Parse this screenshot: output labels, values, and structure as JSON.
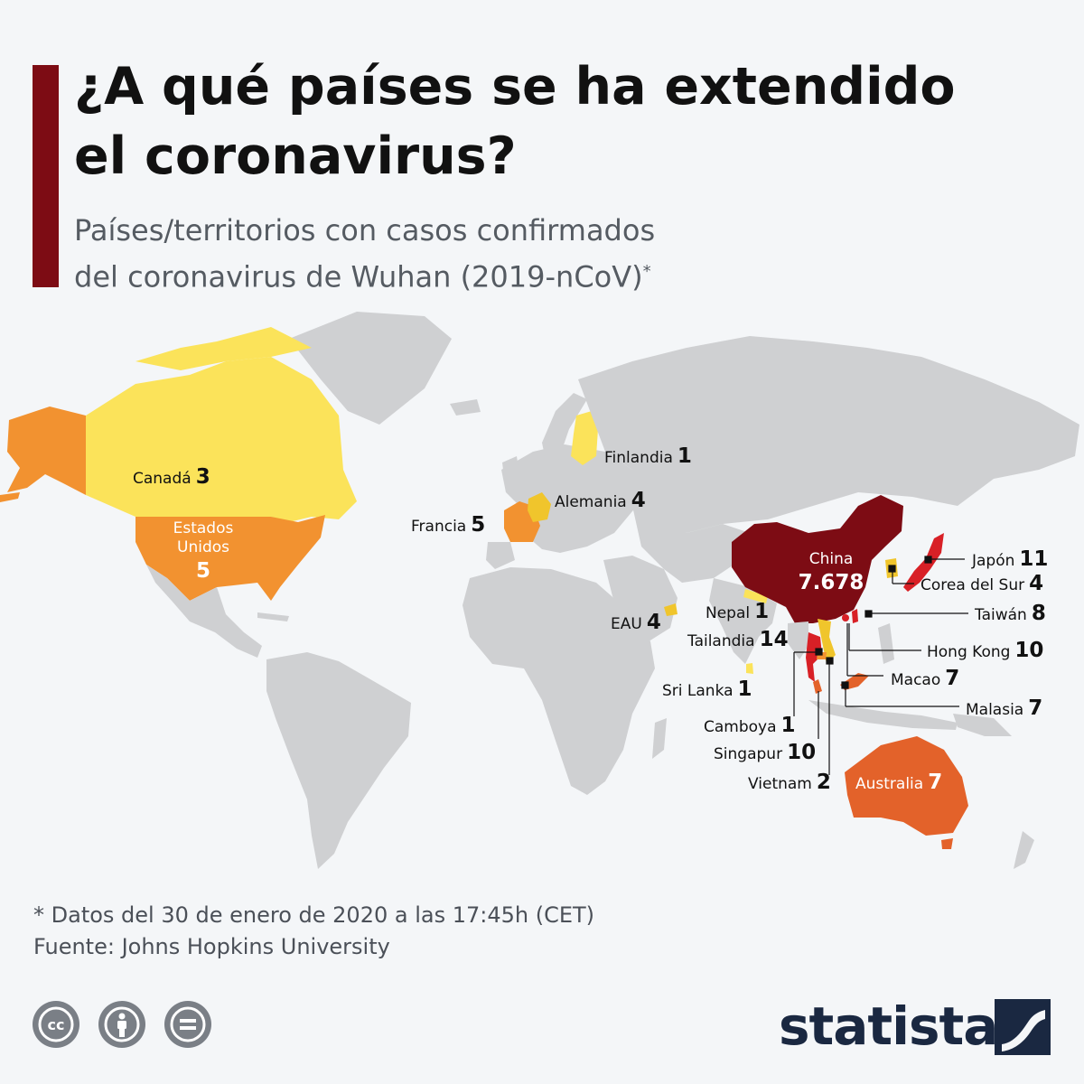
{
  "header": {
    "title_line1": "¿A qué países se ha extendido",
    "title_line2": "el coronavirus?",
    "subtitle_line1": "Países/territorios con casos confirmados",
    "subtitle_line2": "del coronavirus de Wuhan (2019-nCoV)",
    "subtitle_mark": "*"
  },
  "colors": {
    "accent": "#7d0c14",
    "land_no_cases": "#cfd0d2",
    "scale": [
      "#fbe35a",
      "#f0c52c",
      "#f29230",
      "#e3622a",
      "#d82026",
      "#7d0c14"
    ]
  },
  "countries": [
    {
      "name": "Canadá",
      "cases": "3"
    },
    {
      "name": "Estados Unidos",
      "name_line1": "Estados",
      "name_line2": "Unidos",
      "cases": "5"
    },
    {
      "name": "Finlandia",
      "cases": "1"
    },
    {
      "name": "Alemania",
      "cases": "4"
    },
    {
      "name": "Francia",
      "cases": "5"
    },
    {
      "name": "EAU",
      "cases": "4"
    },
    {
      "name": "China",
      "cases": "7.678"
    },
    {
      "name": "Nepal",
      "cases": "1"
    },
    {
      "name": "Tailandia",
      "cases": "14"
    },
    {
      "name": "Sri Lanka",
      "cases": "1"
    },
    {
      "name": "Camboya",
      "cases": "1"
    },
    {
      "name": "Singapur",
      "cases": "10"
    },
    {
      "name": "Vietnam",
      "cases": "2"
    },
    {
      "name": "Japón",
      "cases": "11"
    },
    {
      "name": "Corea del Sur",
      "cases": "4"
    },
    {
      "name": "Taiwán",
      "cases": "8"
    },
    {
      "name": "Hong Kong",
      "cases": "10"
    },
    {
      "name": "Macao",
      "cases": "7"
    },
    {
      "name": "Malasia",
      "cases": "7"
    },
    {
      "name": "Australia",
      "cases": "7"
    }
  ],
  "footer": {
    "note": "* Datos del 30 de enero de 2020 a las 17:45h (CET)",
    "source": "Fuente: Johns Hopkins University"
  },
  "license_icons": [
    "creative-commons-icon",
    "attribution-icon",
    "no-derivatives-icon"
  ],
  "logo": {
    "text": "statista"
  }
}
